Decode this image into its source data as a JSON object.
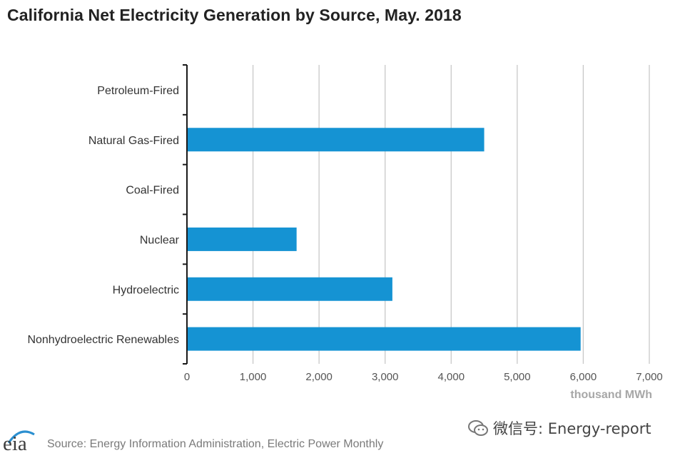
{
  "chart_data": {
    "type": "bar",
    "orientation": "horizontal",
    "title": "California Net Electricity Generation by Source, May. 2018",
    "categories": [
      "Petroleum-Fired",
      "Natural Gas-Fired",
      "Coal-Fired",
      "Nuclear",
      "Hydroelectric",
      "Nonhydroelectric Renewables"
    ],
    "values": [
      0,
      4500,
      0,
      1660,
      3110,
      5960
    ],
    "xlabel": "thousand MWh",
    "ylabel": "",
    "xlim": [
      0,
      7000
    ],
    "ticks": [
      0,
      1000,
      2000,
      3000,
      4000,
      5000,
      6000,
      7000
    ],
    "tick_labels": [
      "0",
      "1,000",
      "2,000",
      "3,000",
      "4,000",
      "5,000",
      "6,000",
      "7,000"
    ],
    "grid": true,
    "bar_color": "#1593d3"
  },
  "footer": {
    "source": "Source: Energy Information Administration, Electric Power Monthly",
    "logo_text": "eia",
    "watermark": "微信号: Energy-report"
  },
  "colors": {
    "bar": "#1593d3",
    "grid": "#c8c8c8",
    "axis": "#1a1a1a",
    "logo_arc": "#2b8fd0"
  }
}
